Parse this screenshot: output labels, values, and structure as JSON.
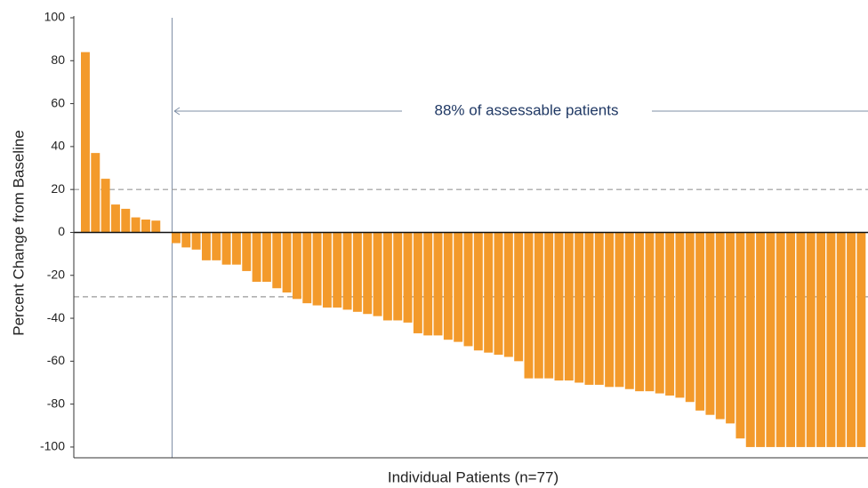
{
  "chart_data": {
    "type": "bar",
    "ylabel": "Percent Change from Baseline",
    "xlabel": "Individual Patients (n=77)",
    "annotation": "88% of assessable patients",
    "categories": [
      null,
      null,
      null,
      null,
      null,
      null,
      null,
      null,
      null,
      null,
      null,
      null,
      null,
      null,
      null,
      null,
      null,
      null,
      null,
      null,
      null,
      null,
      null,
      null,
      null,
      null,
      null,
      null,
      null,
      null,
      null,
      null,
      null,
      null,
      null,
      null,
      null,
      null,
      null,
      null,
      null,
      null,
      null,
      null,
      null,
      null,
      null,
      null,
      null,
      null,
      null,
      null,
      null,
      null,
      null,
      null,
      null,
      null,
      null,
      null,
      null,
      null,
      null,
      null,
      null,
      null,
      null,
      null,
      null,
      null,
      null,
      null,
      null,
      null,
      null,
      null,
      null
    ],
    "values": [
      84,
      37,
      25,
      13,
      11,
      7,
      6,
      5.5,
      -5,
      -7,
      -8,
      -13,
      -13,
      -15,
      -15,
      -18,
      -23,
      -23,
      -26,
      -28,
      -31,
      -33,
      -34,
      -35,
      -35,
      -36,
      -37,
      -38,
      -39,
      -41,
      -41,
      -42,
      -47,
      -48,
      -48,
      -50,
      -51,
      -53,
      -55,
      -56,
      -57,
      -58,
      -60,
      -68,
      -68,
      -68,
      -69,
      -69,
      -70,
      -71,
      -71,
      -72,
      -72,
      -73,
      -74,
      -74,
      -75,
      -76,
      -77,
      -79,
      -83,
      -85,
      -87,
      -89,
      -96,
      -100,
      -100,
      -100,
      -100,
      -100,
      -100,
      -100,
      -100,
      -100,
      -100,
      -100,
      -100
    ],
    "color": "#f39a2b",
    "ylim": [
      -105,
      100
    ],
    "yticks": [
      100,
      80,
      60,
      40,
      20,
      0,
      -20,
      -40,
      -60,
      -80,
      -100
    ],
    "reference_lines": [
      20,
      -30
    ],
    "grid": false
  }
}
